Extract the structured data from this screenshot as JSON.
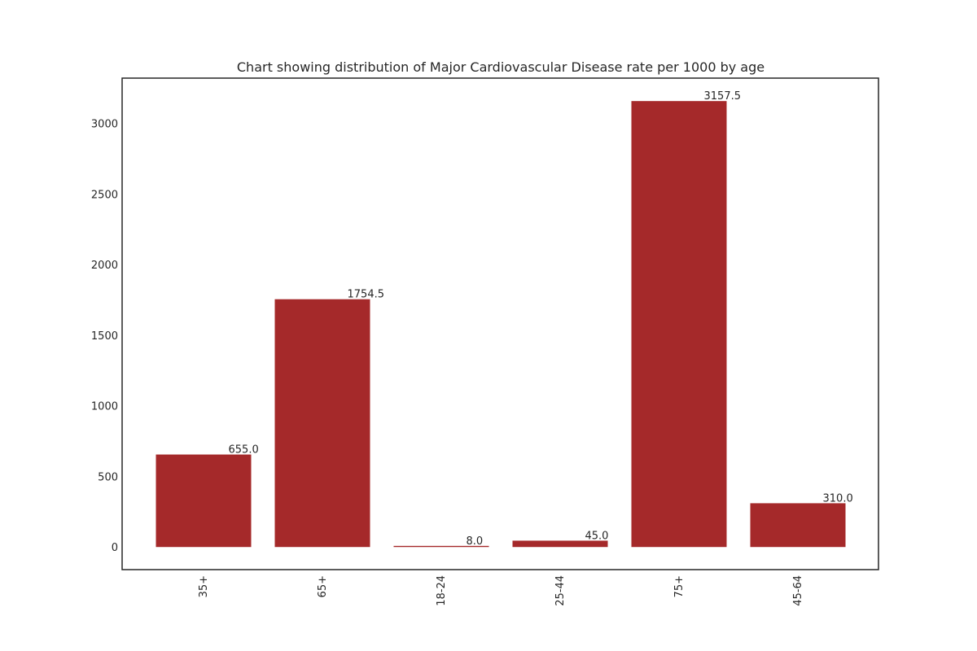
{
  "chart_data": {
    "type": "bar",
    "title": "Chart showing distribution of Major Cardiovascular Disease rate per 1000 by age",
    "xlabel": "",
    "ylabel": "",
    "categories": [
      "35+",
      "65+",
      "18-24",
      "25-44",
      "75+",
      "45-64"
    ],
    "values": [
      655.0,
      1754.5,
      8.0,
      45.0,
      3157.5,
      310.0
    ],
    "value_labels": [
      "655.0",
      "1754.5",
      "8.0",
      "45.0",
      "3157.5",
      "310.0"
    ],
    "yticks": [
      0,
      500,
      1000,
      1500,
      2000,
      2500,
      3000
    ],
    "ylim": [
      -160,
      3320
    ],
    "grid": false,
    "legend": "none",
    "bar_color": "#a5292a",
    "text_color": "#262626"
  }
}
